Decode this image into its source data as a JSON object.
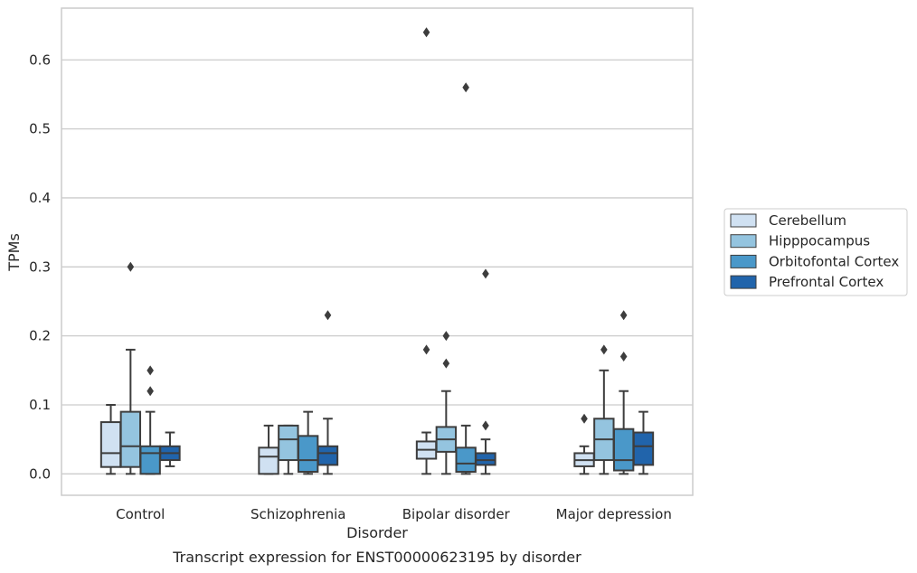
{
  "chart_data": {
    "type": "box",
    "title": "",
    "caption": "Transcript expression for ENST00000623195 by disorder",
    "xlabel": "Disorder",
    "ylabel": "TPMs",
    "ylim": [
      -0.031,
      0.675
    ],
    "yticks": [
      0.0,
      0.1,
      0.2,
      0.3,
      0.4,
      0.5,
      0.6
    ],
    "ytick_labels": [
      "0.0",
      "0.1",
      "0.2",
      "0.3",
      "0.4",
      "0.5",
      "0.6"
    ],
    "categories": [
      "Control",
      "Schizophrenia",
      "Bipolar disorder",
      "Major depression"
    ],
    "grid": "horizontal",
    "legend_position": "right",
    "series": [
      {
        "name": "Cerebellum",
        "color": "#d0e1f2",
        "boxes": [
          {
            "whislo": 0.0,
            "q1": 0.01,
            "median": 0.03,
            "q3": 0.075,
            "whishi": 0.1,
            "fliers": []
          },
          {
            "whislo": 0.0,
            "q1": 0.0,
            "median": 0.025,
            "q3": 0.038,
            "whishi": 0.07,
            "fliers": []
          },
          {
            "whislo": 0.0,
            "q1": 0.022,
            "median": 0.035,
            "q3": 0.047,
            "whishi": 0.06,
            "fliers": [
              0.18,
              0.64
            ]
          },
          {
            "whislo": 0.0,
            "q1": 0.011,
            "median": 0.02,
            "q3": 0.03,
            "whishi": 0.04,
            "fliers": [
              0.08
            ]
          }
        ]
      },
      {
        "name": "Hipppocampus",
        "color": "#94c4df",
        "boxes": [
          {
            "whislo": 0.0,
            "q1": 0.01,
            "median": 0.04,
            "q3": 0.09,
            "whishi": 0.18,
            "fliers": [
              0.3
            ]
          },
          {
            "whislo": 0.0,
            "q1": 0.02,
            "median": 0.05,
            "q3": 0.07,
            "whishi": 0.07,
            "fliers": []
          },
          {
            "whislo": 0.0,
            "q1": 0.032,
            "median": 0.05,
            "q3": 0.068,
            "whishi": 0.12,
            "fliers": [
              0.16,
              0.2
            ]
          },
          {
            "whislo": 0.0,
            "q1": 0.02,
            "median": 0.05,
            "q3": 0.08,
            "whishi": 0.15,
            "fliers": [
              0.18
            ]
          }
        ]
      },
      {
        "name": "Orbitofontal Cortex",
        "color": "#4a98c9",
        "boxes": [
          {
            "whislo": 0.0,
            "q1": 0.0,
            "median": 0.03,
            "q3": 0.04,
            "whishi": 0.09,
            "fliers": [
              0.12,
              0.15
            ]
          },
          {
            "whislo": 0.0,
            "q1": 0.003,
            "median": 0.02,
            "q3": 0.055,
            "whishi": 0.09,
            "fliers": []
          },
          {
            "whislo": 0.0,
            "q1": 0.003,
            "median": 0.015,
            "q3": 0.038,
            "whishi": 0.07,
            "fliers": [
              0.56
            ]
          },
          {
            "whislo": 0.0,
            "q1": 0.005,
            "median": 0.02,
            "q3": 0.065,
            "whishi": 0.12,
            "fliers": [
              0.17,
              0.23
            ]
          }
        ]
      },
      {
        "name": "Prefrontal Cortex",
        "color": "#2164ab",
        "boxes": [
          {
            "whislo": 0.011,
            "q1": 0.02,
            "median": 0.03,
            "q3": 0.04,
            "whishi": 0.06,
            "fliers": []
          },
          {
            "whislo": 0.0,
            "q1": 0.013,
            "median": 0.03,
            "q3": 0.04,
            "whishi": 0.08,
            "fliers": [
              0.23
            ]
          },
          {
            "whislo": 0.0,
            "q1": 0.013,
            "median": 0.02,
            "q3": 0.03,
            "whishi": 0.05,
            "fliers": [
              0.07,
              0.29
            ]
          },
          {
            "whislo": 0.0,
            "q1": 0.013,
            "median": 0.04,
            "q3": 0.06,
            "whishi": 0.09,
            "fliers": []
          }
        ]
      }
    ]
  }
}
